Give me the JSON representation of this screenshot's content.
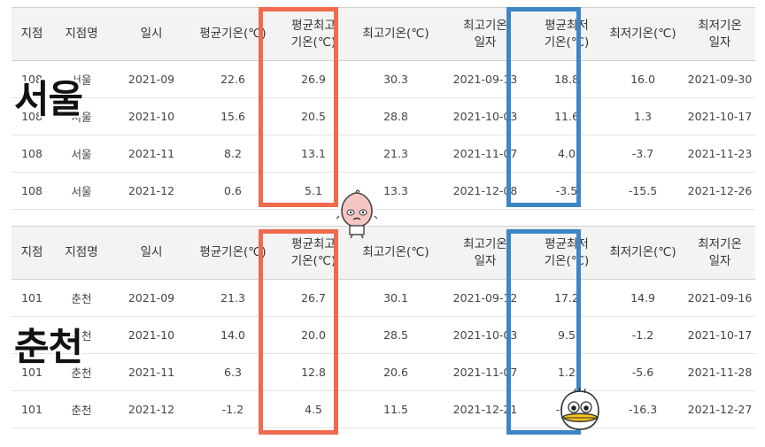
{
  "columns": [
    "지점",
    "지점명",
    "일시",
    "평균기온(℃)",
    "평균최고\n기온(℃)",
    "최고기온(℃)",
    "최고기온\n일자",
    "평균최저\n기온(℃)",
    "최저기온(℃)",
    "최저기온\n일자"
  ],
  "overlay": {
    "seoul": "서울",
    "chuncheon": "춘천"
  },
  "colors": {
    "max_highlight": "#ee6b4d",
    "min_highlight": "#3d86c6"
  },
  "stickers": [
    "peach-character-icon",
    "duck-character-icon"
  ],
  "tables": [
    {
      "rows": [
        [
          "108",
          "서울",
          "2021-09",
          "22.6",
          "26.9",
          "30.3",
          "2021-09-13",
          "18.8",
          "16.0",
          "2021-09-30"
        ],
        [
          "108",
          "서울",
          "2021-10",
          "15.6",
          "20.5",
          "28.8",
          "2021-10-03",
          "11.6",
          "1.3",
          "2021-10-17"
        ],
        [
          "108",
          "서울",
          "2021-11",
          "8.2",
          "13.1",
          "21.3",
          "2021-11-07",
          "4.0",
          "-3.7",
          "2021-11-23"
        ],
        [
          "108",
          "서울",
          "2021-12",
          "0.6",
          "5.1",
          "13.3",
          "2021-12-08",
          "-3.5",
          "-15.5",
          "2021-12-26"
        ]
      ]
    },
    {
      "rows": [
        [
          "101",
          "춘천",
          "2021-09",
          "21.3",
          "26.7",
          "30.1",
          "2021-09-12",
          "17.2",
          "14.9",
          "2021-09-16"
        ],
        [
          "101",
          "춘천",
          "2021-10",
          "14.0",
          "20.0",
          "28.5",
          "2021-10-03",
          "9.5",
          "-1.2",
          "2021-10-17"
        ],
        [
          "101",
          "춘천",
          "2021-11",
          "6.3",
          "12.8",
          "20.6",
          "2021-11-07",
          "1.2",
          "-5.6",
          "2021-11-28"
        ],
        [
          "101",
          "춘천",
          "2021-12",
          "-1.2",
          "4.5",
          "11.5",
          "2021-12-21",
          "-6.2",
          "-16.3",
          "2021-12-27"
        ]
      ]
    }
  ]
}
